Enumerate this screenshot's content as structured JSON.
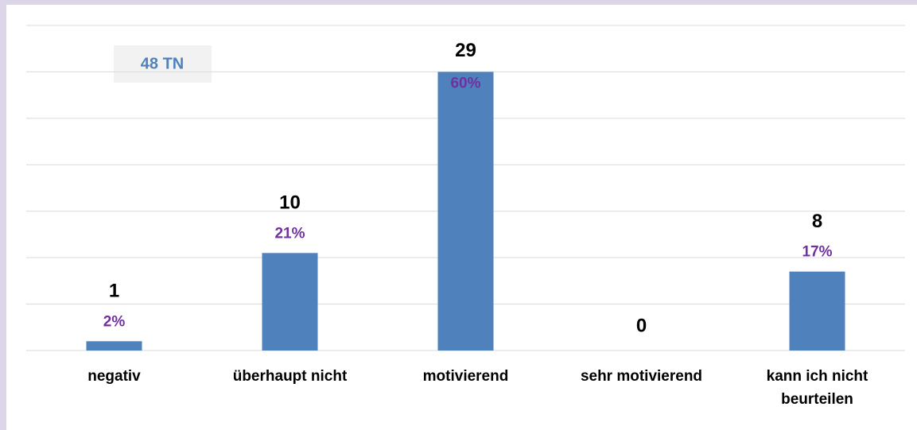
{
  "chart_data": {
    "type": "bar",
    "annotation": "48 TN",
    "categories": [
      "negativ",
      "überhaupt nicht",
      "motivierend",
      "sehr motivierend",
      "kann ich nicht beurteilen"
    ],
    "counts": [
      1,
      10,
      29,
      0,
      8
    ],
    "values": [
      2,
      21,
      60,
      0,
      17
    ],
    "value_labels": [
      "2%",
      "21%",
      "60%",
      null,
      "17%"
    ],
    "color": "#4f81bd",
    "ylim": [
      0,
      70
    ],
    "yticks": [
      0,
      10,
      20,
      30,
      40,
      50,
      60,
      70
    ],
    "grid": true
  }
}
